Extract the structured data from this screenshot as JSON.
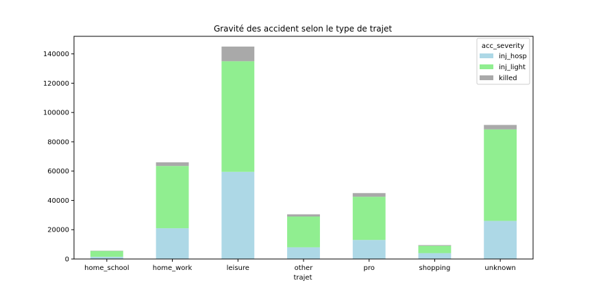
{
  "chart_data": {
    "type": "bar",
    "stacked": true,
    "title": "Gravité des accident selon le type de trajet",
    "xlabel": "trajet",
    "ylabel": "",
    "ylim": [
      0,
      152000
    ],
    "yticks": [
      0,
      20000,
      40000,
      60000,
      80000,
      100000,
      120000,
      140000
    ],
    "categories": [
      "home_school",
      "home_work",
      "leisure",
      "other",
      "pro",
      "shopping",
      "unknown"
    ],
    "legend": {
      "title": "acc_severity",
      "position": "top-right"
    },
    "grid": false,
    "series": [
      {
        "name": "inj_hosp",
        "color": "#add8e6",
        "values": [
          1500,
          21000,
          59500,
          8000,
          13000,
          4000,
          26000
        ]
      },
      {
        "name": "inj_light",
        "color": "#90ee90",
        "values": [
          4000,
          42500,
          75500,
          21000,
          29500,
          5000,
          62500
        ]
      },
      {
        "name": "killed",
        "color": "#a9a9a9",
        "values": [
          200,
          2500,
          10000,
          1500,
          2500,
          500,
          3000
        ]
      }
    ]
  }
}
